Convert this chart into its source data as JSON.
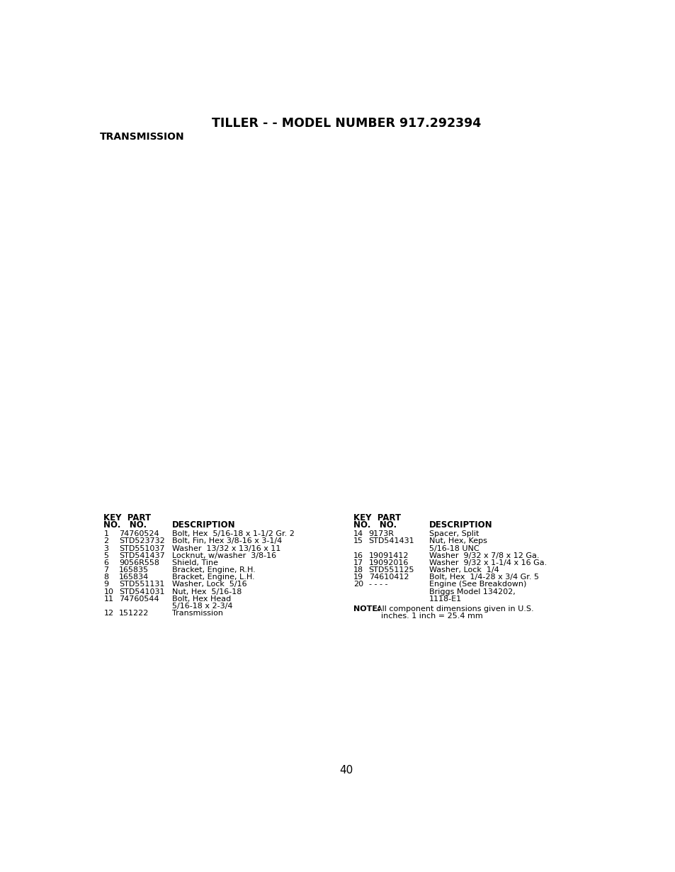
{
  "title": "TILLER - - MODEL NUMBER 917.292394",
  "section": "TRANSMISSION",
  "page_number": "40",
  "bg_color": "#ffffff",
  "text_color": "#000000",
  "left_table": {
    "rows": [
      [
        "1",
        "74760524",
        "Bolt, Hex  5/16-18 x 1-1/2 Gr. 2"
      ],
      [
        "2",
        "STD523732",
        "Bolt, Fin, Hex 3/8-16 x 3-1/4"
      ],
      [
        "3",
        "STD551037",
        "Washer  13/32 x 13/16 x 11"
      ],
      [
        "5",
        "STD541437",
        "Locknut, w/washer  3/8-16"
      ],
      [
        "6",
        "9056R558",
        "Shield, Tine"
      ],
      [
        "7",
        "165835",
        "Bracket, Engine, R.H."
      ],
      [
        "8",
        "165834",
        "Bracket, Engine, L.H."
      ],
      [
        "9",
        "STD551131",
        "Washer, Lock  5/16"
      ],
      [
        "10",
        "STD541031",
        "Nut, Hex  5/16-18"
      ],
      [
        "11",
        "74760544",
        "Bolt, Hex Head"
      ],
      [
        "",
        "",
        "5/16-18 x 2-3/4"
      ],
      [
        "12",
        "151222",
        "Transmission"
      ]
    ]
  },
  "right_table": {
    "rows": [
      [
        "14",
        "9173R",
        "Spacer, Split"
      ],
      [
        "15",
        "STD541431",
        "Nut, Hex, Keps"
      ],
      [
        "",
        "",
        "5/16-18 UNC"
      ],
      [
        "16",
        "19091412",
        "Washer  9/32 x 7/8 x 12 Ga."
      ],
      [
        "17",
        "19092016",
        "Washer  9/32 x 1-1/4 x 16 Ga."
      ],
      [
        "18",
        "STD551125",
        "Washer, Lock  1/4"
      ],
      [
        "19",
        "74610412",
        "Bolt, Hex  1/4-28 x 3/4 Gr. 5"
      ],
      [
        "20",
        "- - - -",
        "Engine (See Breakdown)"
      ],
      [
        "",
        "",
        "Briggs Model 134202,"
      ],
      [
        "",
        "",
        "1118-E1"
      ]
    ]
  },
  "note_label": "NOTE:",
  "note_text1": "All component dimensions given in U.S.",
  "note_text2": "inches. 1 inch = 25.4 mm"
}
